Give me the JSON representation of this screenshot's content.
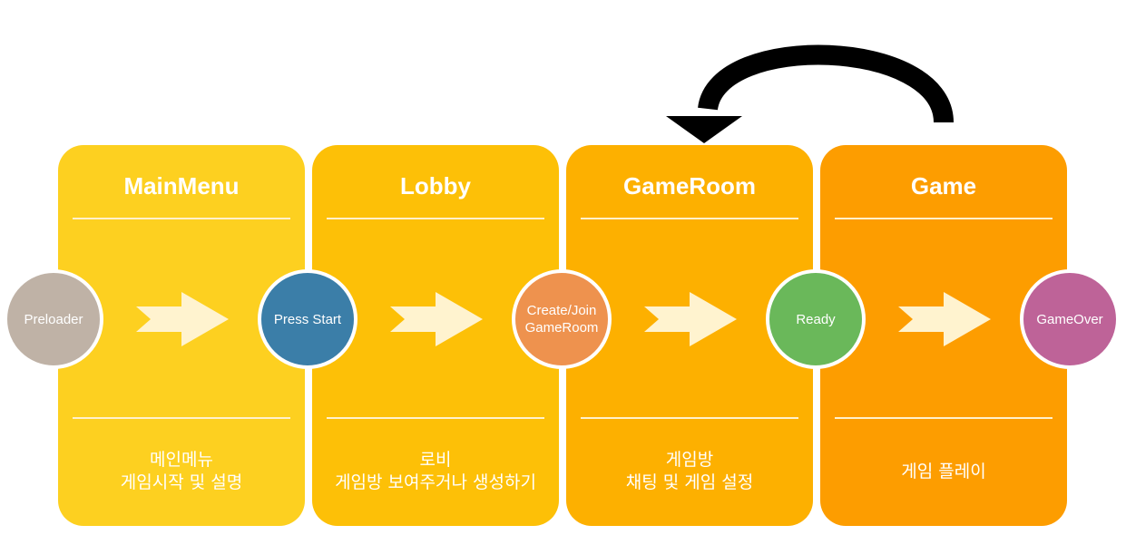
{
  "colors": {
    "panel_mainmenu": "#fdd020",
    "panel_lobby": "#fdc007",
    "panel_gameroom": "#fdb000",
    "panel_game": "#fd9d00",
    "circle_preloader": "#bfb2a6",
    "circle_press_start": "#3b7ea8",
    "circle_create_join": "#ee924e",
    "circle_ready": "#6ab85a",
    "circle_gameover": "#be6398",
    "flow_arrow": "#fff3cf",
    "loop_arrow": "#000000"
  },
  "panels": [
    {
      "title": "MainMenu",
      "desc": [
        "메인메뉴",
        "게임시작 및 설명"
      ]
    },
    {
      "title": "Lobby",
      "desc": [
        "로비",
        "게임방 보여주거나 생성하기"
      ]
    },
    {
      "title": "GameRoom",
      "desc": [
        "게임방",
        "채팅 및 게임 설정"
      ]
    },
    {
      "title": "Game",
      "desc": [
        "게임 플레이",
        ""
      ]
    }
  ],
  "nodes": [
    {
      "label": "Preloader"
    },
    {
      "label": "Press Start"
    },
    {
      "label": "Create/Join\nGameRoom"
    },
    {
      "label": "Ready"
    },
    {
      "label": "GameOver"
    }
  ]
}
